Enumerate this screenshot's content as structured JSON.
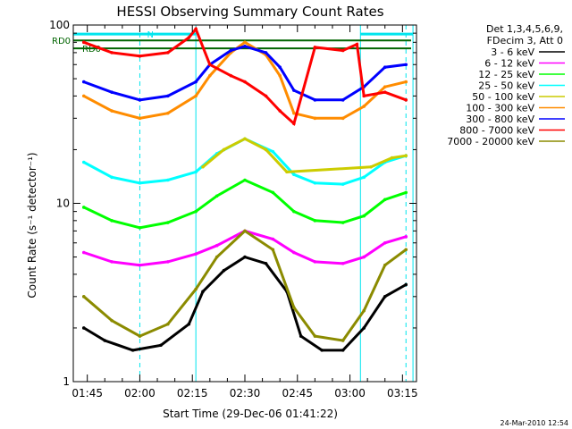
{
  "chart_data": {
    "type": "line",
    "title": "HESSI Observing Summary Count Rates",
    "xlabel": "Start Time (29-Dec-06 01:41:22)",
    "ylabel": "Count Rate (s⁻¹ detector⁻¹)",
    "y_scale": "log",
    "ylim": [
      1,
      100
    ],
    "xlim": [
      "01:41",
      "03:19"
    ],
    "y_ticks": [
      "1",
      "10",
      "100"
    ],
    "x_ticks": [
      "01:45",
      "02:00",
      "02:15",
      "02:30",
      "02:45",
      "03:00",
      "03:15"
    ],
    "legend_header": [
      "Det 1,3,4,5,6,9,",
      "FDecim 3, Att 0"
    ],
    "legend_position": "right",
    "timestamp": "24-Mar-2010 12:54",
    "flags": [
      {
        "label": "N",
        "color": "#00e5ee",
        "intervals": [
          [
            "01:41",
            "02:16"
          ],
          [
            "03:03",
            "03:18"
          ]
        ]
      },
      {
        "label": "RD0",
        "color": "#006400"
      },
      {
        "label": "RD0",
        "color": "#006400"
      }
    ],
    "series": [
      {
        "name": "3 - 6 keV",
        "color": "#000000",
        "x": [
          "01:44",
          "01:50",
          "01:58",
          "02:06",
          "02:14",
          "02:18",
          "02:24",
          "02:30",
          "02:36",
          "02:42",
          "02:46",
          "02:52",
          "02:58",
          "03:04",
          "03:10",
          "03:16"
        ],
        "y": [
          2.0,
          1.7,
          1.5,
          1.6,
          2.1,
          3.2,
          4.2,
          5.0,
          4.6,
          3.2,
          1.8,
          1.5,
          1.5,
          2.0,
          3.0,
          3.5
        ]
      },
      {
        "name": "6 - 12 keV",
        "color": "#ff00ff",
        "x": [
          "01:44",
          "01:52",
          "02:00",
          "02:08",
          "02:16",
          "02:22",
          "02:30",
          "02:38",
          "02:44",
          "02:50",
          "02:58",
          "03:04",
          "03:10",
          "03:16"
        ],
        "y": [
          5.3,
          4.7,
          4.5,
          4.7,
          5.2,
          5.8,
          7.0,
          6.3,
          5.3,
          4.7,
          4.6,
          5.0,
          6.0,
          6.5
        ]
      },
      {
        "name": "12 - 25 keV",
        "color": "#00ff00",
        "x": [
          "01:44",
          "01:52",
          "02:00",
          "02:08",
          "02:16",
          "02:22",
          "02:30",
          "02:38",
          "02:44",
          "02:50",
          "02:58",
          "03:04",
          "03:10",
          "03:16"
        ],
        "y": [
          9.5,
          8.0,
          7.3,
          7.8,
          9.0,
          11.0,
          13.5,
          11.5,
          9.0,
          8.0,
          7.8,
          8.5,
          10.5,
          11.5
        ]
      },
      {
        "name": "25 - 50 keV",
        "color": "#00ffff",
        "x": [
          "01:44",
          "01:52",
          "02:00",
          "02:08",
          "02:16",
          "02:22",
          "02:30",
          "02:38",
          "02:44",
          "02:50",
          "02:58",
          "03:04",
          "03:10",
          "03:16"
        ],
        "y": [
          17,
          14,
          13,
          13.5,
          15,
          19,
          23,
          19.5,
          14.5,
          13,
          12.8,
          14,
          17,
          18.5
        ]
      },
      {
        "name": "50 - 100 keV",
        "color": "#cccc00",
        "x": [
          "02:18",
          "02:24",
          "02:30",
          "02:36",
          "02:42",
          "03:06",
          "03:12",
          "03:16"
        ],
        "y": [
          16,
          20,
          23,
          20,
          15,
          16,
          18,
          18.5
        ]
      },
      {
        "name": "100 - 300 keV",
        "color": "#ff8c00",
        "x": [
          "01:44",
          "01:52",
          "02:00",
          "02:08",
          "02:16",
          "02:20",
          "02:26",
          "02:30",
          "02:36",
          "02:40",
          "02:44",
          "02:50",
          "02:58",
          "03:04",
          "03:10",
          "03:16"
        ],
        "y": [
          40,
          33,
          30,
          32,
          40,
          52,
          70,
          80,
          68,
          52,
          32,
          30,
          30,
          35,
          45,
          48
        ]
      },
      {
        "name": "300 - 800 keV",
        "color": "#0000ff",
        "x": [
          "01:44",
          "01:52",
          "02:00",
          "02:08",
          "02:16",
          "02:20",
          "02:26",
          "02:30",
          "02:36",
          "02:40",
          "02:44",
          "02:50",
          "02:58",
          "03:04",
          "03:10",
          "03:16"
        ],
        "y": [
          48,
          42,
          38,
          40,
          48,
          60,
          72,
          76,
          70,
          58,
          43,
          38,
          38,
          45,
          58,
          60
        ]
      },
      {
        "name": "800 - 7000 keV",
        "color": "#ff0000",
        "x": [
          "01:44",
          "01:52",
          "02:00",
          "02:08",
          "02:14",
          "02:16",
          "02:20",
          "02:26",
          "02:30",
          "02:36",
          "02:40",
          "02:44",
          "02:50",
          "02:58",
          "03:02",
          "03:04",
          "03:10",
          "03:16"
        ],
        "y": [
          80,
          70,
          67,
          70,
          85,
          95,
          60,
          52,
          48,
          40,
          33,
          28,
          75,
          72,
          78,
          40,
          42,
          38
        ]
      },
      {
        "name": "7000 - 20000 keV",
        "color": "#8b8b00",
        "x": [
          "01:44",
          "01:52",
          "02:00",
          "02:08",
          "02:16",
          "02:22",
          "02:30",
          "02:38",
          "02:44",
          "02:50",
          "02:58",
          "03:04",
          "03:10",
          "03:16"
        ],
        "y": [
          3.0,
          2.2,
          1.8,
          2.1,
          3.3,
          5.0,
          7.0,
          5.5,
          2.6,
          1.8,
          1.7,
          2.5,
          4.5,
          5.5
        ]
      }
    ]
  }
}
